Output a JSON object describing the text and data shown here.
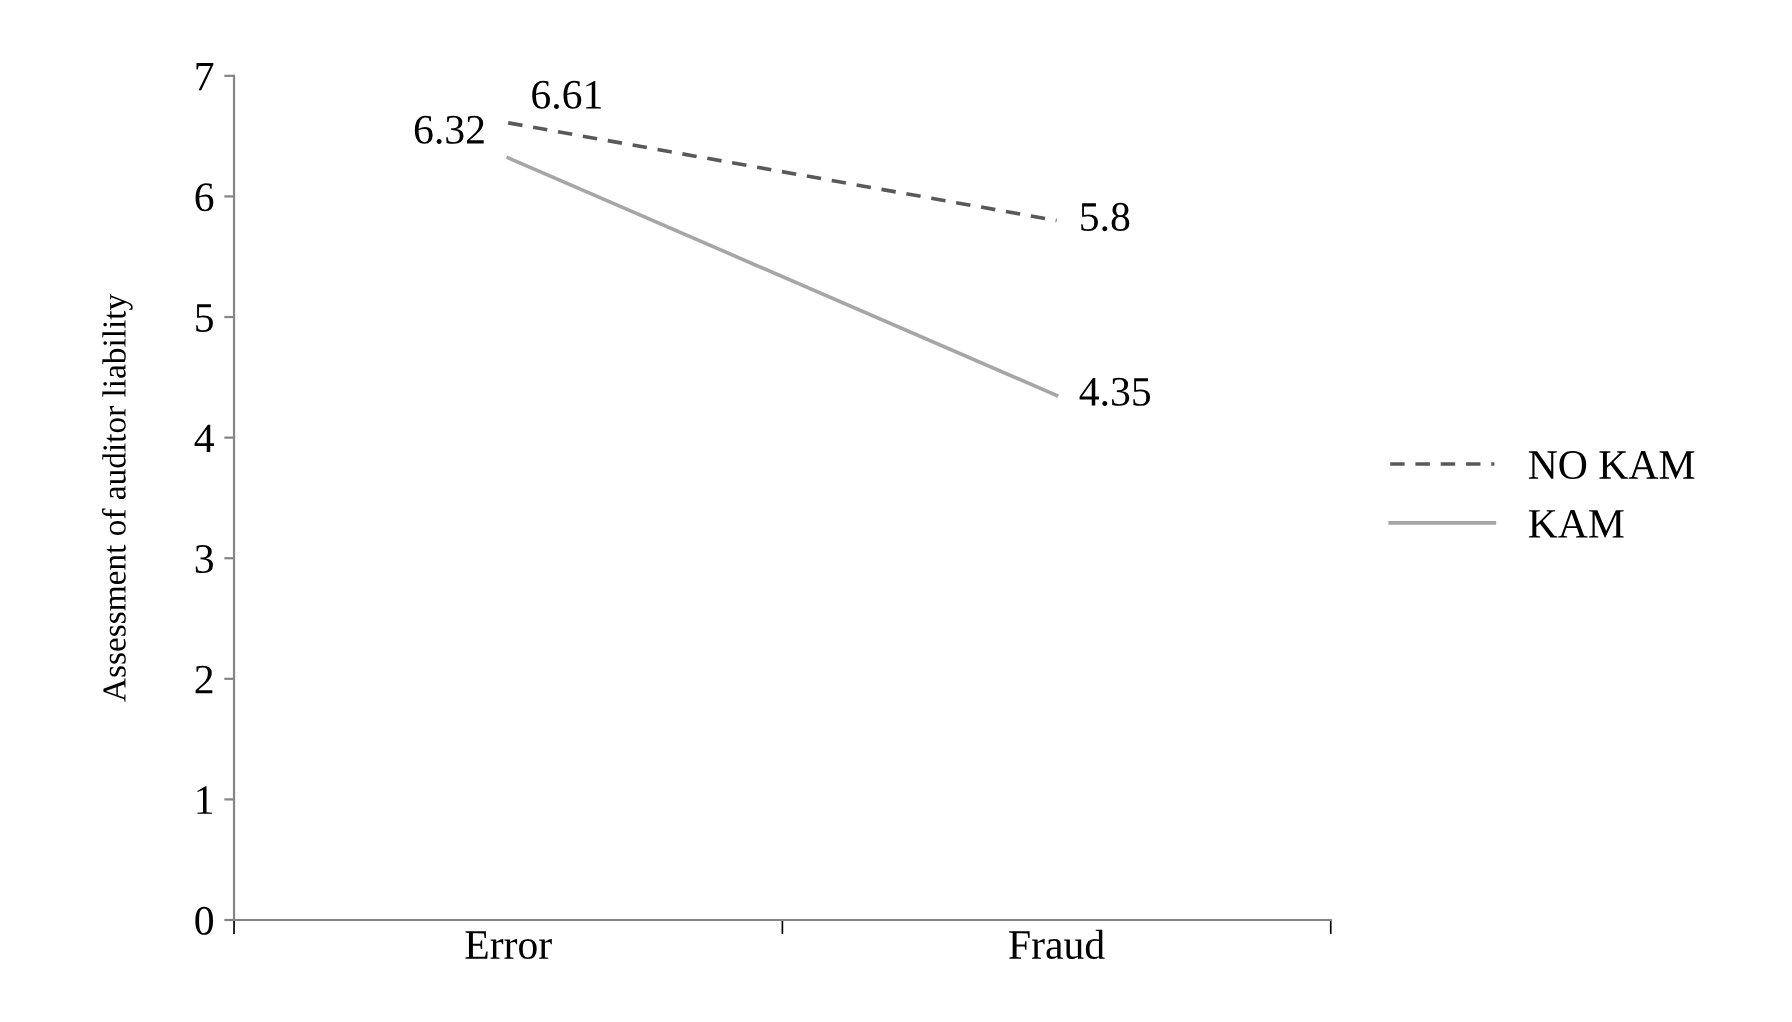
{
  "chart_data": {
    "type": "line",
    "ylabel": "Assessment of auditor liability",
    "categories": [
      "Error",
      "Fraud"
    ],
    "series": [
      {
        "name": "NO KAM",
        "color": "#595959",
        "values": [
          6.61,
          5.8
        ],
        "line_style": "dashed"
      },
      {
        "name": "KAM",
        "color": "#a6a6a6",
        "values": [
          6.32,
          4.35
        ],
        "line_style": "solid"
      }
    ],
    "ylim": [
      0,
      7
    ],
    "yticks": [
      0,
      1,
      2,
      3,
      4,
      5,
      6,
      7
    ],
    "grid": false,
    "legend": "right",
    "data_labels": true,
    "marker": "none"
  }
}
